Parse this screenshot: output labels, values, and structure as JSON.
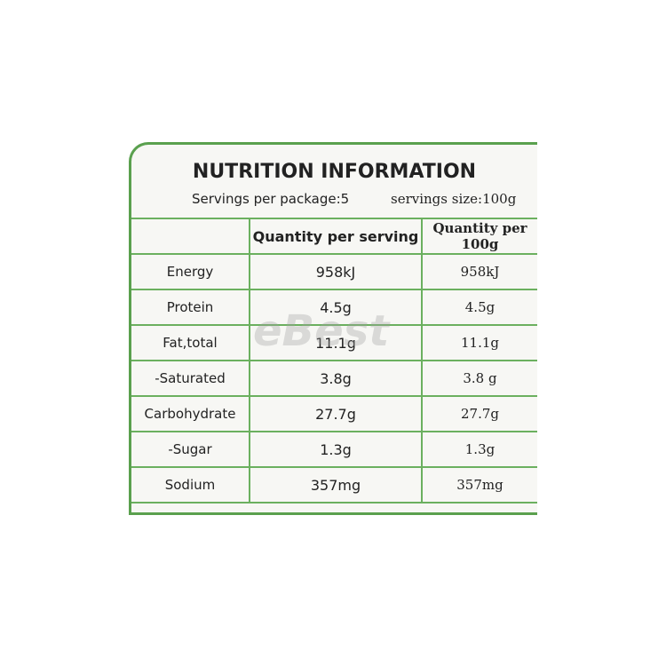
{
  "header": {
    "title": "NUTRITION INFORMATION",
    "servings_per_package": "Servings per package:5",
    "serving_size": "servings size:100g"
  },
  "table": {
    "columns": [
      "Quantity per serving",
      "Quantity per 100g"
    ],
    "rows": [
      [
        "Energy",
        "958kJ",
        "958kJ"
      ],
      [
        "Protein",
        "4.5g",
        "4.5g"
      ],
      [
        "Fat,total",
        "11.1g",
        "11.1g"
      ],
      [
        "-Saturated",
        "3.8g",
        "3.8 g"
      ],
      [
        "Carbohydrate",
        "27.7g",
        "27.7g"
      ],
      [
        "-Sugar",
        "1.3g",
        "1.3g"
      ],
      [
        "Sodium",
        "357mg",
        "357mg"
      ]
    ]
  },
  "watermark": "eBest"
}
